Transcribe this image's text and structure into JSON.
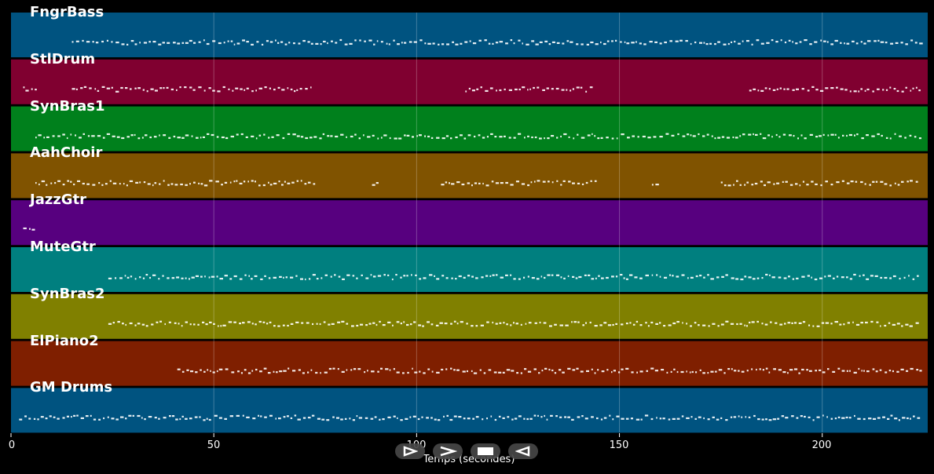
{
  "tracks": [
    {
      "name": "FngrBass",
      "color": "#005380"
    },
    {
      "name": "StlDrum",
      "color": "#800030"
    },
    {
      "name": "SynBras1",
      "color": "#00801c"
    },
    {
      "name": "AahChoir",
      "color": "#805300"
    },
    {
      "name": "JazzGtr",
      "color": "#57007f"
    },
    {
      "name": "MuteGtr",
      "color": "#007f7f"
    },
    {
      "name": "SynBras2",
      "color": "#808000"
    },
    {
      "name": "ElPiano2",
      "color": "#7f1f00"
    },
    {
      "name": "GM Drums",
      "color": "#005380"
    }
  ],
  "x_axis": {
    "label": "Temps (secondes)",
    "ticks": [
      "0",
      "50",
      "100",
      "150",
      "200"
    ],
    "range": [
      0,
      226
    ]
  },
  "note_segments": {
    "FngrBass": [
      [
        15,
        224
      ]
    ],
    "StlDrum": [
      [
        3,
        6
      ],
      [
        15,
        74
      ],
      [
        112,
        143
      ],
      [
        182,
        224
      ]
    ],
    "SynBras1": [
      [
        6,
        224
      ]
    ],
    "AahChoir": [
      [
        6,
        75
      ],
      [
        89,
        91
      ],
      [
        106,
        144
      ],
      [
        158,
        160
      ],
      [
        175,
        224
      ]
    ],
    "JazzGtr": [
      [
        3,
        6
      ]
    ],
    "MuteGtr": [
      [
        24,
        224
      ]
    ],
    "SynBras2": [
      [
        24,
        224
      ]
    ],
    "ElPiano2": [
      [
        41,
        224
      ]
    ],
    "GM Drums": [
      [
        2,
        224
      ]
    ]
  },
  "controls": [
    {
      "name": "play-icon",
      "label": "play"
    },
    {
      "name": "forward-icon",
      "label": "forward"
    },
    {
      "name": "stop-icon",
      "label": "stop"
    },
    {
      "name": "rewind-icon",
      "label": "rewind"
    }
  ]
}
